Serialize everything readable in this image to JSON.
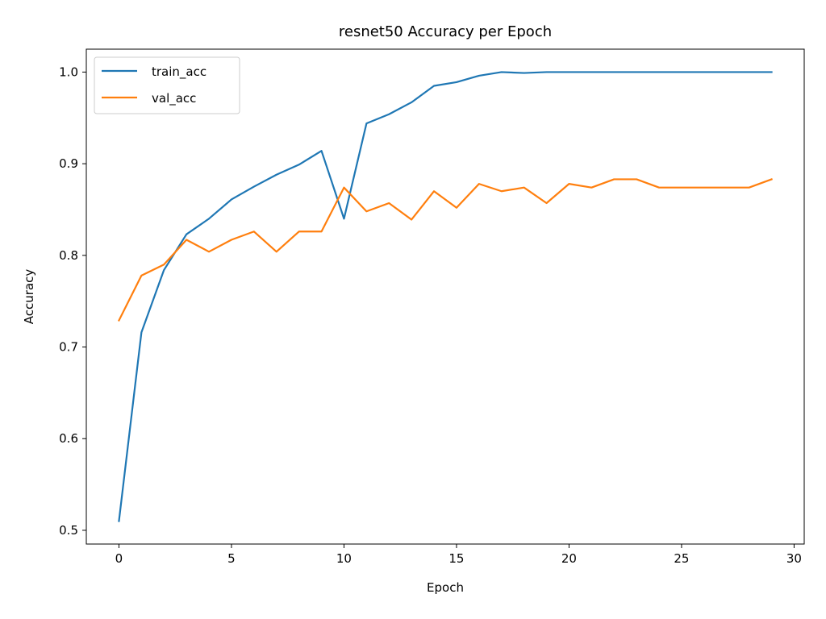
{
  "chart_data": {
    "type": "line",
    "title": "resnet50 Accuracy per Epoch",
    "xlabel": "Epoch",
    "ylabel": "Accuracy",
    "xlim": [
      -1.45,
      30.45
    ],
    "ylim": [
      0.485,
      1.025
    ],
    "x_ticks": [
      0,
      5,
      10,
      15,
      20,
      25,
      30
    ],
    "x_tick_labels": [
      "0",
      "5",
      "10",
      "15",
      "20",
      "25",
      "30"
    ],
    "y_ticks": [
      0.5,
      0.6,
      0.7,
      0.8,
      0.9,
      1.0
    ],
    "y_tick_labels": [
      "0.5",
      "0.6",
      "0.7",
      "0.8",
      "0.9",
      "1.0"
    ],
    "grid": false,
    "legend_position": "upper-left",
    "x": [
      0,
      1,
      2,
      3,
      4,
      5,
      6,
      7,
      8,
      9,
      10,
      11,
      12,
      13,
      14,
      15,
      16,
      17,
      18,
      19,
      20,
      21,
      22,
      23,
      24,
      25,
      26,
      27,
      28,
      29
    ],
    "series": [
      {
        "name": "train_acc",
        "color": "#1f77b4",
        "values": [
          0.51,
          0.716,
          0.784,
          0.823,
          0.84,
          0.861,
          0.875,
          0.888,
          0.899,
          0.914,
          0.84,
          0.944,
          0.954,
          0.967,
          0.985,
          0.989,
          0.996,
          1.0,
          0.999,
          1.0,
          1.0,
          1.0,
          1.0,
          1.0,
          1.0,
          1.0,
          1.0,
          1.0,
          1.0,
          1.0
        ]
      },
      {
        "name": "val_acc",
        "color": "#ff7f0e",
        "values": [
          0.729,
          0.778,
          0.79,
          0.817,
          0.804,
          0.817,
          0.826,
          0.804,
          0.826,
          0.826,
          0.874,
          0.848,
          0.857,
          0.839,
          0.87,
          0.852,
          0.878,
          0.87,
          0.874,
          0.857,
          0.878,
          0.874,
          0.883,
          0.883,
          0.874,
          0.874,
          0.874,
          0.874,
          0.874,
          0.883
        ]
      }
    ]
  }
}
